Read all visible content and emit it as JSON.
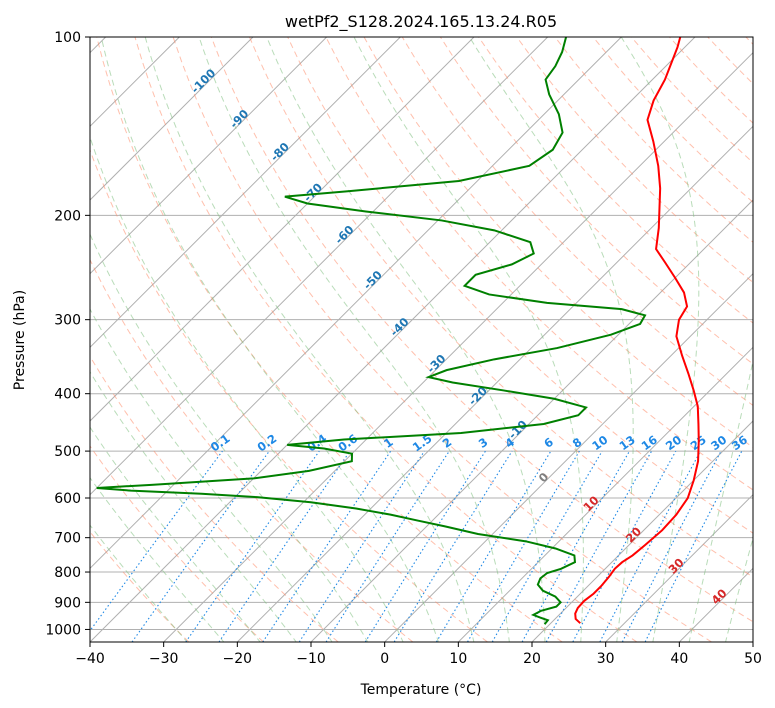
{
  "chart_data": {
    "type": "line",
    "subtype": "skew-T log-P diagram",
    "title": "wetPf2_S128.2024.165.13.24.R05",
    "xlabel": "Temperature (°C)",
    "ylabel": "Pressure (hPa)",
    "xlim": [
      -40,
      50
    ],
    "ylim": [
      1050,
      100
    ],
    "y_scale": "log",
    "x_ticks": [
      -40,
      -30,
      -20,
      -10,
      0,
      10,
      20,
      30,
      40,
      50
    ],
    "x_tick_labels": [
      "−40",
      "−30",
      "−20",
      "−10",
      "0",
      "10",
      "20",
      "30",
      "40",
      "50"
    ],
    "y_ticks": [
      100,
      200,
      300,
      400,
      500,
      600,
      700,
      800,
      900,
      1000
    ],
    "y_tick_labels": [
      "100",
      "200",
      "300",
      "400",
      "500",
      "600",
      "700",
      "800",
      "900",
      "1000"
    ],
    "grid": true,
    "series": [
      {
        "role": "temperature",
        "color": "#ff0000",
        "points": [
          [
            976,
            24.0
          ],
          [
            960,
            22.8
          ],
          [
            940,
            22.0
          ],
          [
            920,
            21.6
          ],
          [
            895,
            21.5
          ],
          [
            870,
            21.8
          ],
          [
            845,
            21.8
          ],
          [
            815,
            21.6
          ],
          [
            790,
            21.3
          ],
          [
            770,
            21.4
          ],
          [
            750,
            21.9
          ],
          [
            720,
            22.2
          ],
          [
            680,
            22.5
          ],
          [
            640,
            22.3
          ],
          [
            600,
            21.6
          ],
          [
            560,
            20.0
          ],
          [
            520,
            18.0
          ],
          [
            480,
            15.3
          ],
          [
            450,
            13.0
          ],
          [
            420,
            10.5
          ],
          [
            395,
            7.8
          ],
          [
            370,
            4.8
          ],
          [
            345,
            1.5
          ],
          [
            320,
            -1.9
          ],
          [
            300,
            -3.8
          ],
          [
            285,
            -4.5
          ],
          [
            270,
            -6.8
          ],
          [
            255,
            -10.0
          ],
          [
            240,
            -13.5
          ],
          [
            228,
            -16.5
          ],
          [
            210,
            -19.0
          ],
          [
            195,
            -21.5
          ],
          [
            180,
            -24.2
          ],
          [
            165,
            -27.5
          ],
          [
            150,
            -31.5
          ],
          [
            138,
            -35.2
          ],
          [
            128,
            -37.0
          ],
          [
            118,
            -38.3
          ],
          [
            110,
            -39.8
          ],
          [
            104,
            -41.0
          ],
          [
            100,
            -42.0
          ]
        ]
      },
      {
        "role": "dewpoint",
        "color": "#008000",
        "points": [
          [
            980,
            19.3
          ],
          [
            965,
            19.2
          ],
          [
            955,
            17.8
          ],
          [
            945,
            16.5
          ],
          [
            930,
            17.0
          ],
          [
            915,
            18.5
          ],
          [
            900,
            18.5
          ],
          [
            880,
            17.0
          ],
          [
            860,
            14.5
          ],
          [
            840,
            13.0
          ],
          [
            820,
            12.5
          ],
          [
            803,
            12.7
          ],
          [
            790,
            14.0
          ],
          [
            770,
            15.0
          ],
          [
            750,
            14.0
          ],
          [
            730,
            10.5
          ],
          [
            710,
            5.5
          ],
          [
            690,
            -2.0
          ],
          [
            670,
            -7.5
          ],
          [
            655,
            -12.0
          ],
          [
            640,
            -16.5
          ],
          [
            625,
            -22.0
          ],
          [
            610,
            -29.0
          ],
          [
            598,
            -37.0
          ],
          [
            590,
            -45.0
          ],
          [
            583,
            -55.0
          ],
          [
            577,
            -60.0
          ],
          [
            570,
            -53.0
          ],
          [
            556,
            -40.0
          ],
          [
            540,
            -33.5
          ],
          [
            520,
            -29.0
          ],
          [
            505,
            -30.0
          ],
          [
            495,
            -34.5
          ],
          [
            488,
            -40.0
          ],
          [
            478,
            -33.0
          ],
          [
            466,
            -18.0
          ],
          [
            450,
            -8.0
          ],
          [
            435,
            -4.5
          ],
          [
            422,
            -4.5
          ],
          [
            408,
            -10.0
          ],
          [
            395,
            -18.0
          ],
          [
            383,
            -26.0
          ],
          [
            375,
            -30.0
          ],
          [
            365,
            -28.5
          ],
          [
            350,
            -23.5
          ],
          [
            335,
            -16.5
          ],
          [
            318,
            -11.0
          ],
          [
            305,
            -8.5
          ],
          [
            295,
            -9.0
          ],
          [
            288,
            -13.0
          ],
          [
            281,
            -24.0
          ],
          [
            272,
            -33.0
          ],
          [
            263,
            -37.5
          ],
          [
            252,
            -37.5
          ],
          [
            242,
            -34.0
          ],
          [
            232,
            -32.5
          ],
          [
            222,
            -34.5
          ],
          [
            212,
            -41.0
          ],
          [
            204,
            -49.5
          ],
          [
            197,
            -61.0
          ],
          [
            191,
            -70.0
          ],
          [
            186,
            -74.0
          ],
          [
            182,
            -66.0
          ],
          [
            175,
            -52.5
          ],
          [
            165,
            -45.0
          ],
          [
            155,
            -44.0
          ],
          [
            145,
            -45.0
          ],
          [
            135,
            -48.0
          ],
          [
            125,
            -52.0
          ],
          [
            118,
            -54.5
          ],
          [
            112,
            -55.0
          ],
          [
            106,
            -56.0
          ],
          [
            100,
            -57.5
          ]
        ]
      }
    ],
    "reference_lines": {
      "dry_adiabats": {
        "style": "dashed",
        "color": "#ff8c69"
      },
      "moist_adiabats": {
        "style": "dashed",
        "color": "#7fbf7f"
      },
      "mixing_ratio_lines": {
        "style": "dotted",
        "color": "#1e88e5"
      },
      "isotherms": {
        "style": "solid",
        "color": "#8c8c8c"
      }
    },
    "annotations": {
      "isotherm_labels": [
        "-100",
        "-90",
        "-80",
        "-70",
        "-60",
        "-50",
        "-40",
        "-30",
        "-20",
        "-10",
        "0",
        "10",
        "20",
        "30",
        "40"
      ],
      "mixing_ratio_labels": [
        "0.1",
        "0.2",
        "0.4",
        "0.6",
        "1",
        "1.5",
        "2",
        "3",
        "4",
        "6",
        "8",
        "10",
        "13",
        "16",
        "20",
        "25",
        "30",
        "36"
      ]
    }
  }
}
